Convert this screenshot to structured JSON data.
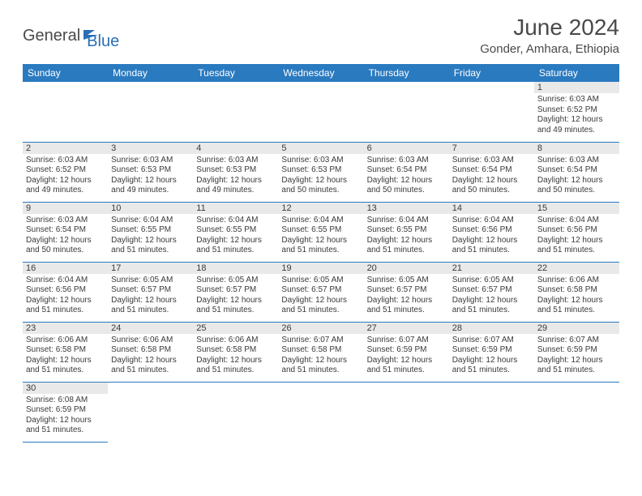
{
  "brand": {
    "part1": "General",
    "part2": "Blue"
  },
  "title": "June 2024",
  "location": "Gonder, Amhara, Ethiopia",
  "colors": {
    "header_bg": "#2a7ac0",
    "header_fg": "#ffffff",
    "daynum_bg": "#e9e9e9",
    "rule": "#2a7ac0",
    "text": "#3a3a3a",
    "brand_blue": "#2a6fb5",
    "brand_gray": "#4a4a4a"
  },
  "weekdays": [
    "Sunday",
    "Monday",
    "Tuesday",
    "Wednesday",
    "Thursday",
    "Friday",
    "Saturday"
  ],
  "startOffset": 6,
  "days": [
    {
      "n": 1,
      "sunrise": "6:03 AM",
      "sunset": "6:52 PM",
      "daylight": "12 hours and 49 minutes."
    },
    {
      "n": 2,
      "sunrise": "6:03 AM",
      "sunset": "6:52 PM",
      "daylight": "12 hours and 49 minutes."
    },
    {
      "n": 3,
      "sunrise": "6:03 AM",
      "sunset": "6:53 PM",
      "daylight": "12 hours and 49 minutes."
    },
    {
      "n": 4,
      "sunrise": "6:03 AM",
      "sunset": "6:53 PM",
      "daylight": "12 hours and 49 minutes."
    },
    {
      "n": 5,
      "sunrise": "6:03 AM",
      "sunset": "6:53 PM",
      "daylight": "12 hours and 50 minutes."
    },
    {
      "n": 6,
      "sunrise": "6:03 AM",
      "sunset": "6:54 PM",
      "daylight": "12 hours and 50 minutes."
    },
    {
      "n": 7,
      "sunrise": "6:03 AM",
      "sunset": "6:54 PM",
      "daylight": "12 hours and 50 minutes."
    },
    {
      "n": 8,
      "sunrise": "6:03 AM",
      "sunset": "6:54 PM",
      "daylight": "12 hours and 50 minutes."
    },
    {
      "n": 9,
      "sunrise": "6:03 AM",
      "sunset": "6:54 PM",
      "daylight": "12 hours and 50 minutes."
    },
    {
      "n": 10,
      "sunrise": "6:04 AM",
      "sunset": "6:55 PM",
      "daylight": "12 hours and 51 minutes."
    },
    {
      "n": 11,
      "sunrise": "6:04 AM",
      "sunset": "6:55 PM",
      "daylight": "12 hours and 51 minutes."
    },
    {
      "n": 12,
      "sunrise": "6:04 AM",
      "sunset": "6:55 PM",
      "daylight": "12 hours and 51 minutes."
    },
    {
      "n": 13,
      "sunrise": "6:04 AM",
      "sunset": "6:55 PM",
      "daylight": "12 hours and 51 minutes."
    },
    {
      "n": 14,
      "sunrise": "6:04 AM",
      "sunset": "6:56 PM",
      "daylight": "12 hours and 51 minutes."
    },
    {
      "n": 15,
      "sunrise": "6:04 AM",
      "sunset": "6:56 PM",
      "daylight": "12 hours and 51 minutes."
    },
    {
      "n": 16,
      "sunrise": "6:04 AM",
      "sunset": "6:56 PM",
      "daylight": "12 hours and 51 minutes."
    },
    {
      "n": 17,
      "sunrise": "6:05 AM",
      "sunset": "6:57 PM",
      "daylight": "12 hours and 51 minutes."
    },
    {
      "n": 18,
      "sunrise": "6:05 AM",
      "sunset": "6:57 PM",
      "daylight": "12 hours and 51 minutes."
    },
    {
      "n": 19,
      "sunrise": "6:05 AM",
      "sunset": "6:57 PM",
      "daylight": "12 hours and 51 minutes."
    },
    {
      "n": 20,
      "sunrise": "6:05 AM",
      "sunset": "6:57 PM",
      "daylight": "12 hours and 51 minutes."
    },
    {
      "n": 21,
      "sunrise": "6:05 AM",
      "sunset": "6:57 PM",
      "daylight": "12 hours and 51 minutes."
    },
    {
      "n": 22,
      "sunrise": "6:06 AM",
      "sunset": "6:58 PM",
      "daylight": "12 hours and 51 minutes."
    },
    {
      "n": 23,
      "sunrise": "6:06 AM",
      "sunset": "6:58 PM",
      "daylight": "12 hours and 51 minutes."
    },
    {
      "n": 24,
      "sunrise": "6:06 AM",
      "sunset": "6:58 PM",
      "daylight": "12 hours and 51 minutes."
    },
    {
      "n": 25,
      "sunrise": "6:06 AM",
      "sunset": "6:58 PM",
      "daylight": "12 hours and 51 minutes."
    },
    {
      "n": 26,
      "sunrise": "6:07 AM",
      "sunset": "6:58 PM",
      "daylight": "12 hours and 51 minutes."
    },
    {
      "n": 27,
      "sunrise": "6:07 AM",
      "sunset": "6:59 PM",
      "daylight": "12 hours and 51 minutes."
    },
    {
      "n": 28,
      "sunrise": "6:07 AM",
      "sunset": "6:59 PM",
      "daylight": "12 hours and 51 minutes."
    },
    {
      "n": 29,
      "sunrise": "6:07 AM",
      "sunset": "6:59 PM",
      "daylight": "12 hours and 51 minutes."
    },
    {
      "n": 30,
      "sunrise": "6:08 AM",
      "sunset": "6:59 PM",
      "daylight": "12 hours and 51 minutes."
    }
  ],
  "labels": {
    "sunrise": "Sunrise:",
    "sunset": "Sunset:",
    "daylight": "Daylight:"
  }
}
